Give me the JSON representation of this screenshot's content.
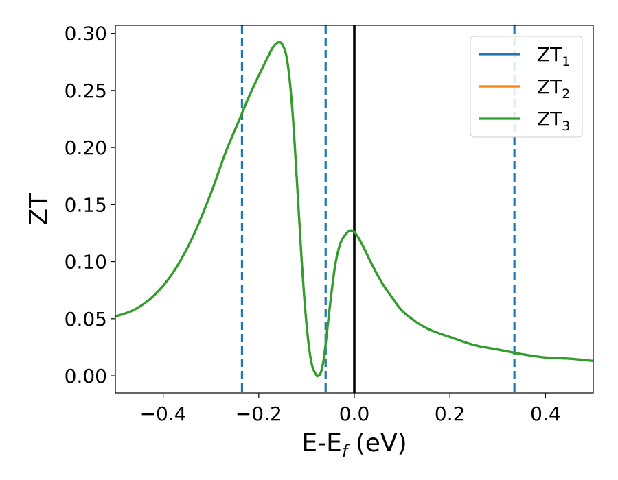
{
  "chart_data": {
    "type": "line",
    "title": "",
    "xlabel": "E-E",
    "xlabel_sub": "f",
    "xlabel_unit": " (eV)",
    "ylabel": "ZT",
    "xlim": [
      -0.5,
      0.5
    ],
    "ylim": [
      -0.015,
      0.307
    ],
    "xticks": [
      -0.4,
      -0.2,
      0.0,
      0.2,
      0.4
    ],
    "xtick_labels": [
      "−0.4",
      "−0.2",
      "0.0",
      "0.2",
      "0.4"
    ],
    "yticks": [
      0.0,
      0.05,
      0.1,
      0.15,
      0.2,
      0.25,
      0.3
    ],
    "ytick_labels": [
      "0.00",
      "0.05",
      "0.10",
      "0.15",
      "0.20",
      "0.25",
      "0.30"
    ],
    "grid": false,
    "legend_position": "top-right",
    "vlines": [
      {
        "x": -0.235,
        "style": "dashed",
        "color": "#1f77b4"
      },
      {
        "x": -0.06,
        "style": "dashed",
        "color": "#1f77b4"
      },
      {
        "x": 0.0,
        "style": "solid",
        "color": "#000000"
      },
      {
        "x": 0.335,
        "style": "dashed",
        "color": "#1f77b4"
      }
    ],
    "x": [
      -0.5,
      -0.46,
      -0.42,
      -0.38,
      -0.34,
      -0.3,
      -0.27,
      -0.24,
      -0.22,
      -0.2,
      -0.18,
      -0.17,
      -0.16,
      -0.15,
      -0.14,
      -0.13,
      -0.12,
      -0.11,
      -0.1,
      -0.09,
      -0.08,
      -0.075,
      -0.07,
      -0.065,
      -0.06,
      -0.05,
      -0.04,
      -0.03,
      -0.02,
      -0.01,
      0.0,
      0.01,
      0.02,
      0.04,
      0.06,
      0.08,
      0.1,
      0.13,
      0.16,
      0.2,
      0.25,
      0.3,
      0.35,
      0.4,
      0.45,
      0.5
    ],
    "series": [
      {
        "name": "ZT",
        "name_sub": "1",
        "color": "#1f77b4",
        "values": [
          0.052,
          0.058,
          0.07,
          0.09,
          0.12,
          0.16,
          0.195,
          0.225,
          0.245,
          0.263,
          0.28,
          0.288,
          0.292,
          0.29,
          0.275,
          0.235,
          0.17,
          0.1,
          0.045,
          0.012,
          0.001,
          0.0,
          0.003,
          0.012,
          0.028,
          0.065,
          0.097,
          0.115,
          0.123,
          0.127,
          0.126,
          0.12,
          0.112,
          0.095,
          0.08,
          0.068,
          0.057,
          0.047,
          0.04,
          0.034,
          0.027,
          0.023,
          0.019,
          0.016,
          0.015,
          0.013
        ]
      },
      {
        "name": "ZT",
        "name_sub": "2",
        "color": "#ff7f0e",
        "values": [
          0.052,
          0.058,
          0.07,
          0.09,
          0.12,
          0.16,
          0.195,
          0.225,
          0.245,
          0.263,
          0.28,
          0.288,
          0.292,
          0.29,
          0.275,
          0.235,
          0.17,
          0.1,
          0.045,
          0.012,
          0.001,
          0.0,
          0.003,
          0.012,
          0.028,
          0.065,
          0.097,
          0.115,
          0.123,
          0.127,
          0.126,
          0.12,
          0.112,
          0.095,
          0.08,
          0.068,
          0.057,
          0.047,
          0.04,
          0.034,
          0.027,
          0.023,
          0.019,
          0.016,
          0.015,
          0.013
        ]
      },
      {
        "name": "ZT",
        "name_sub": "3",
        "color": "#2ca02c",
        "values": [
          0.052,
          0.058,
          0.07,
          0.09,
          0.12,
          0.16,
          0.195,
          0.225,
          0.245,
          0.263,
          0.28,
          0.288,
          0.292,
          0.29,
          0.275,
          0.235,
          0.17,
          0.1,
          0.045,
          0.012,
          0.001,
          0.0,
          0.003,
          0.012,
          0.028,
          0.065,
          0.097,
          0.115,
          0.123,
          0.127,
          0.126,
          0.12,
          0.112,
          0.095,
          0.08,
          0.068,
          0.057,
          0.047,
          0.04,
          0.034,
          0.027,
          0.023,
          0.019,
          0.016,
          0.015,
          0.013
        ]
      }
    ]
  }
}
